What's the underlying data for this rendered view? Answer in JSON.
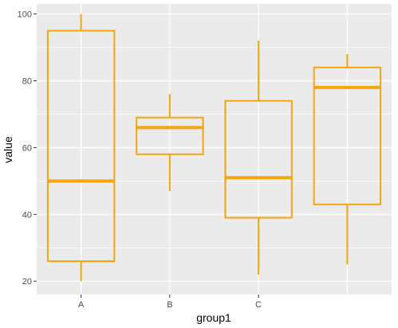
{
  "chart_data": {
    "type": "box",
    "title": "",
    "xlabel": "group1",
    "ylabel": "value",
    "ylim": [
      16,
      103
    ],
    "yticks": [
      20,
      40,
      60,
      80,
      100
    ],
    "grid": true,
    "legend": "none",
    "colors": {
      "box": "#F5A50F",
      "panel": "#EBEBEB",
      "grid": "#FFFFFF"
    },
    "categories": [
      "A",
      "B",
      "C",
      ""
    ],
    "boxes": [
      {
        "category": "A",
        "min": 20,
        "q1": 26,
        "median": 50,
        "q3": 95,
        "max": 100
      },
      {
        "category": "B",
        "min": 47,
        "q1": 58,
        "median": 66,
        "q3": 69,
        "max": 76
      },
      {
        "category": "C",
        "min": 22,
        "q1": 39,
        "median": 51,
        "q3": 74,
        "max": 92
      },
      {
        "category": "",
        "min": 25,
        "q1": 43,
        "median": 78,
        "q3": 84,
        "max": 88
      }
    ]
  }
}
